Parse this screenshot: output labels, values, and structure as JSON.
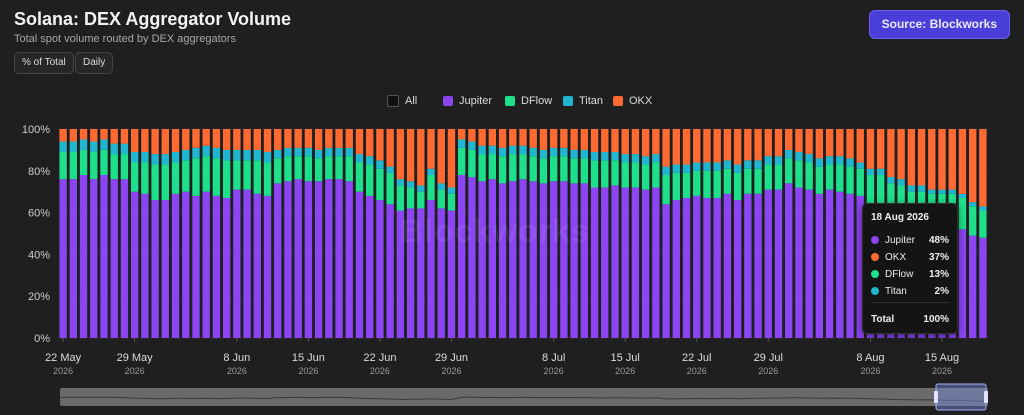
{
  "header": {
    "title": "Solana: DEX Aggregator Volume",
    "subtitle": "Total spot volume routed by DEX aggregators",
    "source_label": "Source: Blockworks",
    "controls": [
      "% of Total",
      "Daily"
    ]
  },
  "legend": [
    {
      "name": "All",
      "color": "#111111"
    },
    {
      "name": "Jupiter",
      "color": "#8b45f2"
    },
    {
      "name": "DFlow",
      "color": "#1fe08a"
    },
    {
      "name": "Titan",
      "color": "#21b6cf"
    },
    {
      "name": "OKX",
      "color": "#ff6a33"
    }
  ],
  "watermark": "Blockworks",
  "tooltip": {
    "date": "18 Aug 2026",
    "rows": [
      {
        "name": "Jupiter",
        "value": "48%",
        "color": "#8b45f2"
      },
      {
        "name": "OKX",
        "value": "37%",
        "color": "#ff6a33"
      },
      {
        "name": "DFlow",
        "value": "13%",
        "color": "#1fe08a"
      },
      {
        "name": "Titan",
        "value": "2%",
        "color": "#21b6cf"
      }
    ],
    "total_label": "Total",
    "total_value": "100%"
  },
  "chart_data": {
    "type": "bar",
    "stacked": true,
    "y_unit": "% of total",
    "ylim": [
      0,
      100
    ],
    "y_ticks": [
      "0%",
      "20%",
      "40%",
      "60%",
      "80%",
      "100%"
    ],
    "x_ticks": [
      {
        "index": 0,
        "label": "22 May",
        "year": "2026"
      },
      {
        "index": 7,
        "label": "29 May",
        "year": "2026"
      },
      {
        "index": 17,
        "label": "8 Jun",
        "year": "2026"
      },
      {
        "index": 24,
        "label": "15 Jun",
        "year": "2026"
      },
      {
        "index": 31,
        "label": "22 Jun",
        "year": "2026"
      },
      {
        "index": 38,
        "label": "29 Jun",
        "year": "2026"
      },
      {
        "index": 48,
        "label": "8 Jul",
        "year": "2026"
      },
      {
        "index": 55,
        "label": "15 Jul",
        "year": "2026"
      },
      {
        "index": 62,
        "label": "22 Jul",
        "year": "2026"
      },
      {
        "index": 69,
        "label": "29 Jul",
        "year": "2026"
      },
      {
        "index": 79,
        "label": "8 Aug",
        "year": "2026"
      },
      {
        "index": 86,
        "label": "15 Aug",
        "year": "2026"
      }
    ],
    "x_range": [
      "20 May 2026",
      "18 Aug 2026"
    ],
    "series": [
      {
        "name": "Jupiter",
        "color": "#8b45f2",
        "values": [
          76,
          76,
          78,
          76,
          78,
          76,
          76,
          70,
          69,
          66,
          66,
          69,
          70,
          68,
          70,
          68,
          67,
          71,
          71,
          69,
          68,
          74,
          75,
          76,
          75,
          75,
          76,
          76,
          75,
          70,
          68,
          66,
          64,
          61,
          62,
          62,
          66,
          62,
          61,
          78,
          77,
          75,
          76,
          74,
          75,
          76,
          75,
          74,
          75,
          75,
          74,
          74,
          72,
          72,
          73,
          72,
          72,
          71,
          72,
          64,
          66,
          67,
          68,
          67,
          67,
          69,
          66,
          69,
          69,
          71,
          71,
          74,
          72,
          71,
          69,
          71,
          70,
          69,
          68,
          64,
          64,
          60,
          60,
          58,
          59,
          57,
          56,
          55,
          52,
          49,
          48
        ]
      },
      {
        "name": "DFlow",
        "color": "#1fe08a",
        "values": [
          13,
          13,
          12,
          13,
          12,
          12,
          12,
          14,
          15,
          17,
          17,
          15,
          15,
          18,
          17,
          18,
          18,
          14,
          14,
          16,
          16,
          12,
          12,
          11,
          12,
          11,
          11,
          11,
          12,
          14,
          15,
          15,
          15,
          12,
          10,
          8,
          12,
          9,
          8,
          13,
          13,
          13,
          12,
          13,
          13,
          12,
          12,
          12,
          12,
          12,
          12,
          12,
          13,
          13,
          12,
          12,
          12,
          12,
          12,
          14,
          13,
          12,
          12,
          13,
          13,
          12,
          13,
          12,
          12,
          12,
          12,
          12,
          13,
          13,
          13,
          12,
          13,
          13,
          13,
          14,
          14,
          14,
          13,
          12,
          11,
          12,
          13,
          14,
          15,
          14,
          13
        ]
      },
      {
        "name": "Titan",
        "color": "#21b6cf",
        "values": [
          5,
          5,
          5,
          5,
          5,
          5,
          5,
          5,
          5,
          5,
          5,
          5,
          5,
          5,
          5,
          5,
          5,
          5,
          5,
          5,
          5,
          4,
          4,
          4,
          4,
          4,
          4,
          4,
          4,
          4,
          4,
          4,
          3,
          3,
          3,
          3,
          3,
          3,
          3,
          4,
          4,
          4,
          4,
          4,
          4,
          4,
          4,
          4,
          4,
          4,
          4,
          4,
          4,
          4,
          4,
          4,
          4,
          4,
          4,
          4,
          4,
          4,
          4,
          4,
          4,
          4,
          4,
          4,
          4,
          4,
          4,
          4,
          4,
          4,
          4,
          4,
          4,
          4,
          3,
          3,
          3,
          3,
          3,
          3,
          3,
          2,
          2,
          2,
          2,
          2,
          2
        ]
      },
      {
        "name": "OKX",
        "color": "#ff6a33",
        "values": [
          6,
          6,
          5,
          6,
          5,
          7,
          7,
          11,
          11,
          12,
          12,
          11,
          10,
          9,
          8,
          9,
          10,
          10,
          10,
          10,
          11,
          10,
          9,
          9,
          9,
          10,
          9,
          9,
          9,
          12,
          13,
          15,
          18,
          24,
          25,
          27,
          19,
          26,
          28,
          5,
          6,
          8,
          8,
          9,
          8,
          8,
          9,
          10,
          9,
          9,
          10,
          10,
          11,
          11,
          11,
          12,
          12,
          13,
          12,
          18,
          17,
          17,
          16,
          16,
          16,
          15,
          17,
          15,
          15,
          13,
          13,
          10,
          11,
          12,
          14,
          13,
          13,
          14,
          16,
          19,
          19,
          23,
          24,
          27,
          27,
          29,
          29,
          29,
          31,
          35,
          37
        ]
      }
    ]
  }
}
